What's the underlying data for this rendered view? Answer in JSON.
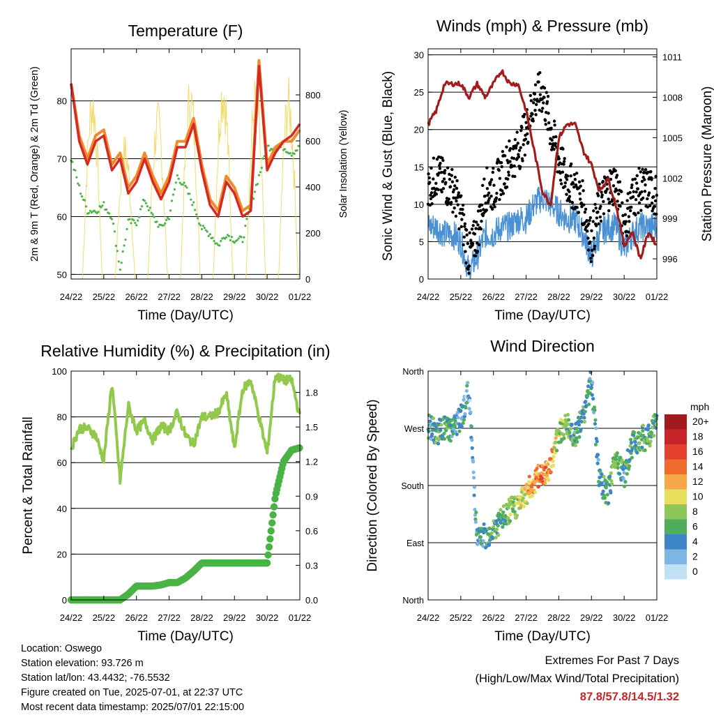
{
  "x_ticks": [
    "24/22",
    "25/22",
    "26/22",
    "27/22",
    "28/22",
    "29/22",
    "30/22",
    "01/22"
  ],
  "x_axis_label": "Time (Day/UTC)",
  "panels": {
    "temperature": {
      "title": "Temperature (F)",
      "ylabel_left": "2m & 9m T (Red, Orange) & 2m Td (Green)",
      "ylabel_right": "Solar Insolation (Yellow)",
      "left_ticks": [
        "50",
        "60",
        "70",
        "80"
      ],
      "right_ticks": [
        "0",
        "200",
        "400",
        "600",
        "800"
      ]
    },
    "winds": {
      "title": "Winds (mph) & Pressure (mb)",
      "ylabel_left": "Sonic Wind & Gust (Blue, Black)",
      "ylabel_right": "Station Pressure (Maroon)",
      "left_ticks": [
        "0",
        "5",
        "10",
        "15",
        "20",
        "25",
        "30"
      ],
      "right_ticks": [
        "996",
        "999",
        "1002",
        "1005",
        "1008",
        "1011"
      ]
    },
    "humidity": {
      "title": "Relative Humidity (%) & Precipitation (in)",
      "ylabel_left": "Percent & Total Rainfall",
      "left_ticks": [
        "0",
        "20",
        "40",
        "60",
        "80",
        "100"
      ],
      "right_ticks": [
        "0.0",
        "0.3",
        "0.6",
        "0.9",
        "1.2",
        "1.5",
        "1.8"
      ]
    },
    "direction": {
      "title": "Wind Direction",
      "ylabel_left": "Direction (Colored By Speed)",
      "left_ticks": [
        "North",
        "East",
        "South",
        "West",
        "North"
      ],
      "legend_title": "mph",
      "legend_labels": [
        "20+",
        "18",
        "16",
        "14",
        "12",
        "10",
        "8",
        "6",
        "4",
        "2",
        "0"
      ],
      "legend_colors": [
        "#a11a1f",
        "#c8242a",
        "#e3402e",
        "#f06a2e",
        "#f7a94a",
        "#e8df5a",
        "#8dc75a",
        "#4fae5c",
        "#3d85c6",
        "#7db6e3",
        "#bfe0f5"
      ]
    }
  },
  "colors": {
    "temp_2m": "#d42a22",
    "temp_9m": "#f08a2c",
    "dewpoint": "#4db34a",
    "solar": "#f2d55a",
    "wind": "#4a90d4",
    "gust": "#000000",
    "pressure": "#a21c1c",
    "rh": "#92c84c",
    "precip": "#4bb346"
  },
  "info": {
    "location": "Location: Oswego",
    "elevation": "Station elevation: 93.726 m",
    "latlon": "Station lat/lon: 43.4432; -76.5532",
    "created": "Figure created on Tue, 2025-07-01, at 22:37 UTC",
    "recent": "Most recent data timestamp: 2025/07/01 22:15:00",
    "extremes_title": "Extremes For Past 7 Days",
    "extremes_sub": "(High/Low/Max Wind/Total Precipitation)",
    "extremes_value": "87.8/57.8/14.5/1.32"
  },
  "chart_data": [
    {
      "type": "line",
      "x": [
        0,
        0.25,
        0.5,
        0.75,
        1,
        1.25,
        1.5,
        1.75,
        2,
        2.25,
        2.5,
        2.75,
        3,
        3.25,
        3.5,
        3.75,
        4,
        4.25,
        4.5,
        4.75,
        5,
        5.25,
        5.5,
        5.75,
        6,
        6.25,
        6.5,
        6.75,
        7
      ],
      "series": [
        {
          "values": [
            83,
            73,
            69,
            73,
            74,
            68,
            70,
            64,
            66,
            70,
            66,
            63,
            66,
            72,
            72,
            76,
            68,
            62,
            60,
            66,
            64,
            60,
            61,
            86,
            68,
            71,
            73,
            74,
            76
          ]
        },
        {
          "values": [
            83,
            74,
            70,
            74,
            75,
            69,
            71,
            65,
            67,
            71,
            67,
            64,
            67,
            73,
            73,
            77,
            69,
            63,
            61,
            67,
            65,
            61,
            62,
            87,
            69,
            72,
            73,
            73,
            75
          ]
        },
        {
          "values": [
            70,
            65,
            61,
            61,
            62,
            60,
            51,
            59,
            59,
            63,
            60,
            58,
            60,
            67,
            65,
            62,
            58,
            57,
            55,
            57,
            56,
            56,
            62,
            67,
            72,
            72,
            72,
            71,
            72
          ]
        }
      ]
    },
    {
      "type": "scatter",
      "x": [
        0,
        0.25,
        0.5,
        0.75,
        1,
        1.25,
        1.5,
        1.75,
        2,
        2.25,
        2.5,
        2.75,
        3,
        3.25,
        3.5,
        3.75,
        4,
        4.25,
        4.5,
        4.75,
        5,
        5.25,
        5.5,
        5.75,
        6,
        6.25,
        6.5,
        6.75,
        7
      ],
      "series": [
        {
          "values": [
            7,
            7,
            6,
            6,
            5,
            1,
            3,
            6,
            6,
            7,
            7,
            8,
            8,
            10,
            11,
            10,
            9,
            8,
            8,
            6,
            3,
            6,
            7,
            7,
            4,
            6,
            7,
            7,
            7
          ]
        },
        {
          "values": [
            12,
            14,
            13,
            12,
            9,
            3,
            6,
            12,
            12,
            14,
            16,
            17,
            20,
            24,
            25,
            20,
            16,
            13,
            12,
            10,
            5,
            10,
            12,
            13,
            7,
            11,
            12,
            12,
            11
          ]
        },
        {
          "values": [
            1006,
            1007,
            1009,
            1009,
            1009,
            1008,
            1009,
            1008,
            1009,
            1010,
            1009,
            1009,
            1007,
            1004,
            1001,
            1000,
            1005,
            1006,
            1006,
            1004,
            1003,
            1001,
            1002,
            1000,
            997,
            998,
            996,
            998,
            997
          ]
        }
      ]
    },
    {
      "type": "line",
      "x": [
        0,
        0.25,
        0.5,
        0.75,
        1,
        1.25,
        1.5,
        1.75,
        2,
        2.25,
        2.5,
        2.75,
        3,
        3.25,
        3.5,
        3.75,
        4,
        4.25,
        4.5,
        4.75,
        5,
        5.25,
        5.5,
        5.75,
        6,
        6.25,
        6.5,
        6.75,
        7
      ],
      "series": [
        {
          "values": [
            66,
            75,
            75,
            72,
            61,
            95,
            52,
            85,
            74,
            78,
            70,
            76,
            74,
            82,
            72,
            68,
            80,
            80,
            82,
            90,
            66,
            92,
            96,
            80,
            64,
            98,
            96,
            96,
            80
          ]
        },
        {
          "values": [
            0,
            0,
            0,
            0,
            0,
            0,
            0,
            0.05,
            0.12,
            0.12,
            0.12,
            0.13,
            0.15,
            0.15,
            0.19,
            0.25,
            0.32,
            0.32,
            0.32,
            0.32,
            0.32,
            0.32,
            0.32,
            0.32,
            0.32,
            0.9,
            1.2,
            1.3,
            1.32
          ]
        }
      ]
    },
    {
      "type": "scatter",
      "x": [
        0,
        0.25,
        0.5,
        0.75,
        1,
        1.25,
        1.5,
        1.75,
        2,
        2.25,
        2.5,
        2.75,
        3,
        3.25,
        3.5,
        3.75,
        4,
        4.25,
        4.5,
        4.75,
        5,
        5.25,
        5.5,
        5.75,
        6,
        6.25,
        6.5,
        6.75,
        7
      ],
      "series": [
        {
          "values": [
            275,
            262,
            270,
            268,
            285,
            330,
            95,
            100,
            110,
            125,
            140,
            150,
            168,
            185,
            200,
            210,
            265,
            275,
            255,
            290,
            345,
            185,
            165,
            230,
            195,
            245,
            255,
            255,
            280
          ]
        },
        {
          "values": [
            5,
            5,
            6,
            5,
            4,
            3,
            4,
            5,
            6,
            6,
            7,
            9,
            11,
            13,
            14,
            12,
            8,
            7,
            6,
            6,
            4,
            4,
            6,
            7,
            5,
            5,
            6,
            6,
            6
          ]
        }
      ]
    }
  ]
}
